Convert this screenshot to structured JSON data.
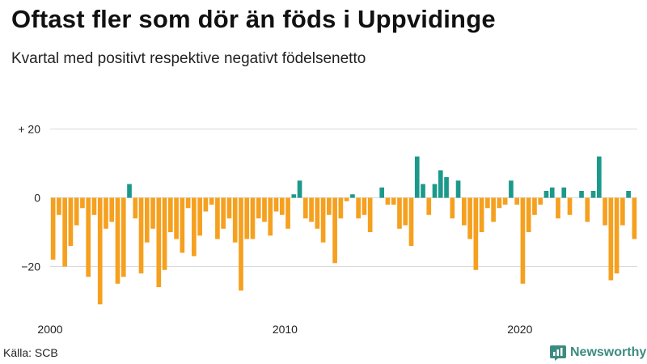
{
  "header": {
    "title": "Oftast fler som dör än föds i Uppvidinge",
    "subtitle": "Kvartal med positivt respektive negativt födelsenetto"
  },
  "footer": {
    "source": "Källa: SCB",
    "brand": "Newsworthy"
  },
  "colors": {
    "positive": "#1b998b",
    "negative": "#f5a01f",
    "grid": "#d9d9d9",
    "brand": "#3d8b80"
  },
  "chart_data": {
    "type": "bar",
    "title": "Oftast fler som dör än föds i Uppvidinge",
    "subtitle": "Kvartal med positivt respektive negativt födelsenetto",
    "xlabel": "",
    "ylabel": "",
    "ylim": [
      -34,
      24
    ],
    "y_ticks": [
      20,
      0,
      -20
    ],
    "y_tick_labels": [
      "+ 20",
      "0",
      "−20"
    ],
    "x_ticks": [
      {
        "index": 0,
        "label": "2000"
      },
      {
        "index": 40,
        "label": "2010"
      },
      {
        "index": 80,
        "label": "2020"
      }
    ],
    "start": "2000 Q1",
    "frequency": "quarter",
    "values": [
      -18,
      -5,
      -20,
      -14,
      -8,
      -3,
      -23,
      -5,
      -31,
      -9,
      -7,
      -25,
      -23,
      4,
      -6,
      -22,
      -13,
      -9,
      -26,
      -21,
      -10,
      -12,
      -16,
      -3,
      -17,
      -11,
      -4,
      -2,
      -12,
      -9,
      -6,
      -13,
      -27,
      -12,
      -12,
      -6,
      -7,
      -11,
      -4,
      -5,
      -9,
      1,
      5,
      -6,
      -7,
      -9,
      -13,
      -5,
      -19,
      -6,
      -1,
      1,
      -6,
      -5,
      -10,
      0,
      3,
      -2,
      -2,
      -9,
      -8,
      -14,
      12,
      4,
      -5,
      4,
      8,
      6,
      -6,
      5,
      -8,
      -12,
      -21,
      -10,
      -3,
      -7,
      -3,
      -2,
      5,
      -2,
      -25,
      -10,
      -5,
      -2,
      2,
      3,
      -6,
      3,
      -5,
      0,
      2,
      -7,
      2,
      12,
      -8,
      -24,
      -22,
      -8,
      2,
      -12
    ]
  }
}
